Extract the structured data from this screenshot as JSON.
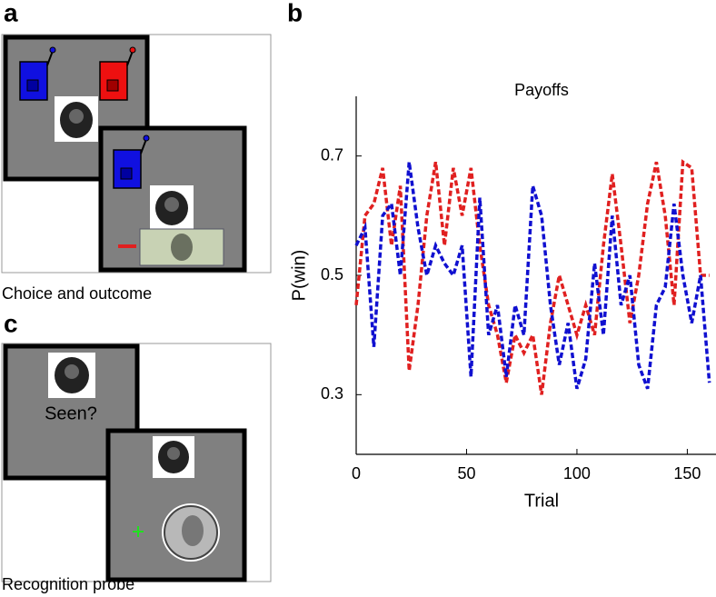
{
  "panel_a": {
    "label": "a",
    "caption": "Choice and outcome"
  },
  "panel_c": {
    "label": "c",
    "caption": "Recognition probe",
    "question": "Seen?"
  },
  "chart_data": {
    "type": "line",
    "label": "b",
    "title": "Payoffs",
    "xlabel": "Trial",
    "ylabel": "P(win)",
    "x": [
      0,
      4,
      8,
      12,
      16,
      20,
      24,
      28,
      32,
      36,
      40,
      44,
      48,
      52,
      56,
      60,
      64,
      68,
      72,
      76,
      80,
      84,
      88,
      92,
      96,
      100,
      104,
      108,
      112,
      116,
      120,
      124,
      128,
      132,
      136,
      140,
      144,
      148,
      152,
      156,
      160
    ],
    "series": [
      {
        "name": "Red",
        "color": "#e02020",
        "values": [
          0.45,
          0.6,
          0.62,
          0.68,
          0.55,
          0.65,
          0.34,
          0.45,
          0.6,
          0.69,
          0.55,
          0.68,
          0.6,
          0.68,
          0.55,
          0.45,
          0.4,
          0.32,
          0.4,
          0.37,
          0.4,
          0.3,
          0.42,
          0.5,
          0.45,
          0.4,
          0.45,
          0.4,
          0.55,
          0.67,
          0.55,
          0.42,
          0.5,
          0.62,
          0.69,
          0.6,
          0.45,
          0.69,
          0.68,
          0.5,
          0.5
        ]
      },
      {
        "name": "Blue",
        "color": "#1010d0",
        "values": [
          0.55,
          0.58,
          0.38,
          0.6,
          0.62,
          0.5,
          0.69,
          0.58,
          0.5,
          0.55,
          0.52,
          0.5,
          0.55,
          0.33,
          0.63,
          0.4,
          0.45,
          0.33,
          0.45,
          0.4,
          0.65,
          0.6,
          0.45,
          0.35,
          0.42,
          0.31,
          0.36,
          0.52,
          0.4,
          0.6,
          0.45,
          0.5,
          0.35,
          0.31,
          0.45,
          0.48,
          0.62,
          0.5,
          0.42,
          0.5,
          0.32
        ]
      }
    ],
    "xlim": [
      0,
      163
    ],
    "ylim": [
      0.2,
      0.8
    ],
    "xticks": [
      0,
      50,
      100,
      150
    ],
    "yticks": [
      0.3,
      0.5,
      0.7
    ]
  }
}
